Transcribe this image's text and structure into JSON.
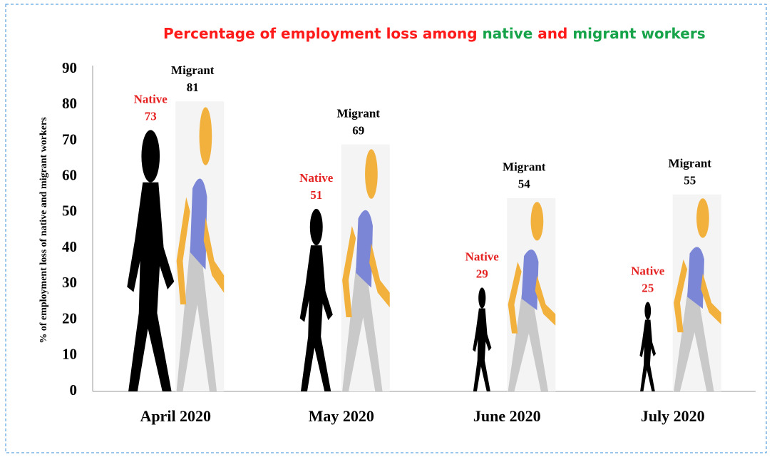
{
  "chart_data": {
    "type": "pictograph",
    "title_parts": [
      "Percentage of employment loss among",
      "native",
      "and",
      "migrant",
      "workers"
    ],
    "y_label": "% of employment loss of native and migrant workers",
    "categories": [
      "April 2020",
      "May 2020",
      "June 2020",
      "July 2020"
    ],
    "series": [
      {
        "name": "Native",
        "color": "#000000",
        "values": [
          73,
          51,
          29,
          25
        ]
      },
      {
        "name": "Migrant",
        "color": "#7b86d6",
        "values": [
          81,
          69,
          54,
          55
        ]
      }
    ],
    "ylim": [
      0,
      90
    ],
    "yticks": [
      0,
      10,
      20,
      30,
      40,
      50,
      60,
      70,
      80,
      90
    ]
  }
}
